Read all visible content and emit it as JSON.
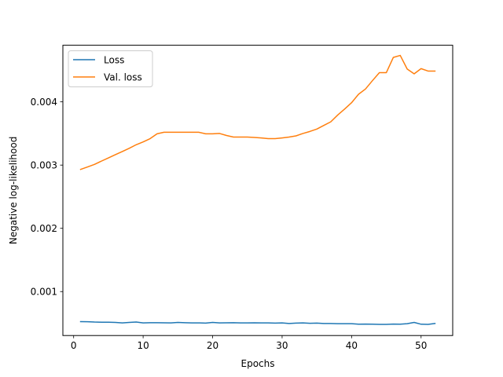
{
  "chart_data": {
    "type": "line",
    "xlabel": "Epochs",
    "ylabel": "Negative log-likelihood",
    "xlim": [
      -1.55,
      54.55
    ],
    "ylim": [
      0.000305,
      0.004895
    ],
    "xticks": [
      0,
      10,
      20,
      30,
      40,
      50
    ],
    "yticks": [
      0.001,
      0.002,
      0.003,
      0.004
    ],
    "ytick_labels": [
      "0.001",
      "0.002",
      "0.003",
      "0.004"
    ],
    "grid": false,
    "legend_position": "top-left",
    "x": [
      1,
      2,
      3,
      4,
      5,
      6,
      7,
      8,
      9,
      10,
      11,
      12,
      13,
      14,
      15,
      16,
      17,
      18,
      19,
      20,
      21,
      22,
      23,
      24,
      25,
      26,
      27,
      28,
      29,
      30,
      31,
      32,
      33,
      34,
      35,
      36,
      37,
      38,
      39,
      40,
      41,
      42,
      43,
      44,
      45,
      46,
      47,
      48,
      49,
      50,
      51,
      52
    ],
    "series": [
      {
        "name": "Loss",
        "color": "#1f77b4",
        "values": [
          0.000525,
          0.000523,
          0.000518,
          0.000516,
          0.000516,
          0.000512,
          0.000505,
          0.000512,
          0.000518,
          0.000505,
          0.000508,
          0.000508,
          0.000506,
          0.000505,
          0.000512,
          0.000508,
          0.000505,
          0.000505,
          0.000502,
          0.000512,
          0.000505,
          0.000506,
          0.000508,
          0.000504,
          0.000505,
          0.000506,
          0.000504,
          0.000505,
          0.000502,
          0.000505,
          0.000495,
          0.000502,
          0.000505,
          0.000499,
          0.000502,
          0.000495,
          0.000495,
          0.000492,
          0.000492,
          0.000492,
          0.000484,
          0.000486,
          0.000484,
          0.000481,
          0.000481,
          0.000486,
          0.000484,
          0.000492,
          0.000512,
          0.000484,
          0.000481,
          0.000495
        ]
      },
      {
        "name": "Val. loss",
        "color": "#ff7f0e",
        "values": [
          0.002932,
          0.002971,
          0.003011,
          0.003063,
          0.003114,
          0.003165,
          0.003215,
          0.003266,
          0.003322,
          0.003367,
          0.003418,
          0.003494,
          0.003519,
          0.003519,
          0.003519,
          0.003519,
          0.003519,
          0.003519,
          0.003494,
          0.003494,
          0.0035,
          0.003468,
          0.003443,
          0.003443,
          0.003443,
          0.003437,
          0.00343,
          0.003418,
          0.003418,
          0.00343,
          0.003443,
          0.003462,
          0.0035,
          0.003532,
          0.00357,
          0.003627,
          0.003684,
          0.003792,
          0.003886,
          0.003987,
          0.00412,
          0.004203,
          0.004335,
          0.004462,
          0.004462,
          0.004702,
          0.004734,
          0.004519,
          0.004443,
          0.004525,
          0.004487,
          0.004487
        ]
      }
    ]
  }
}
